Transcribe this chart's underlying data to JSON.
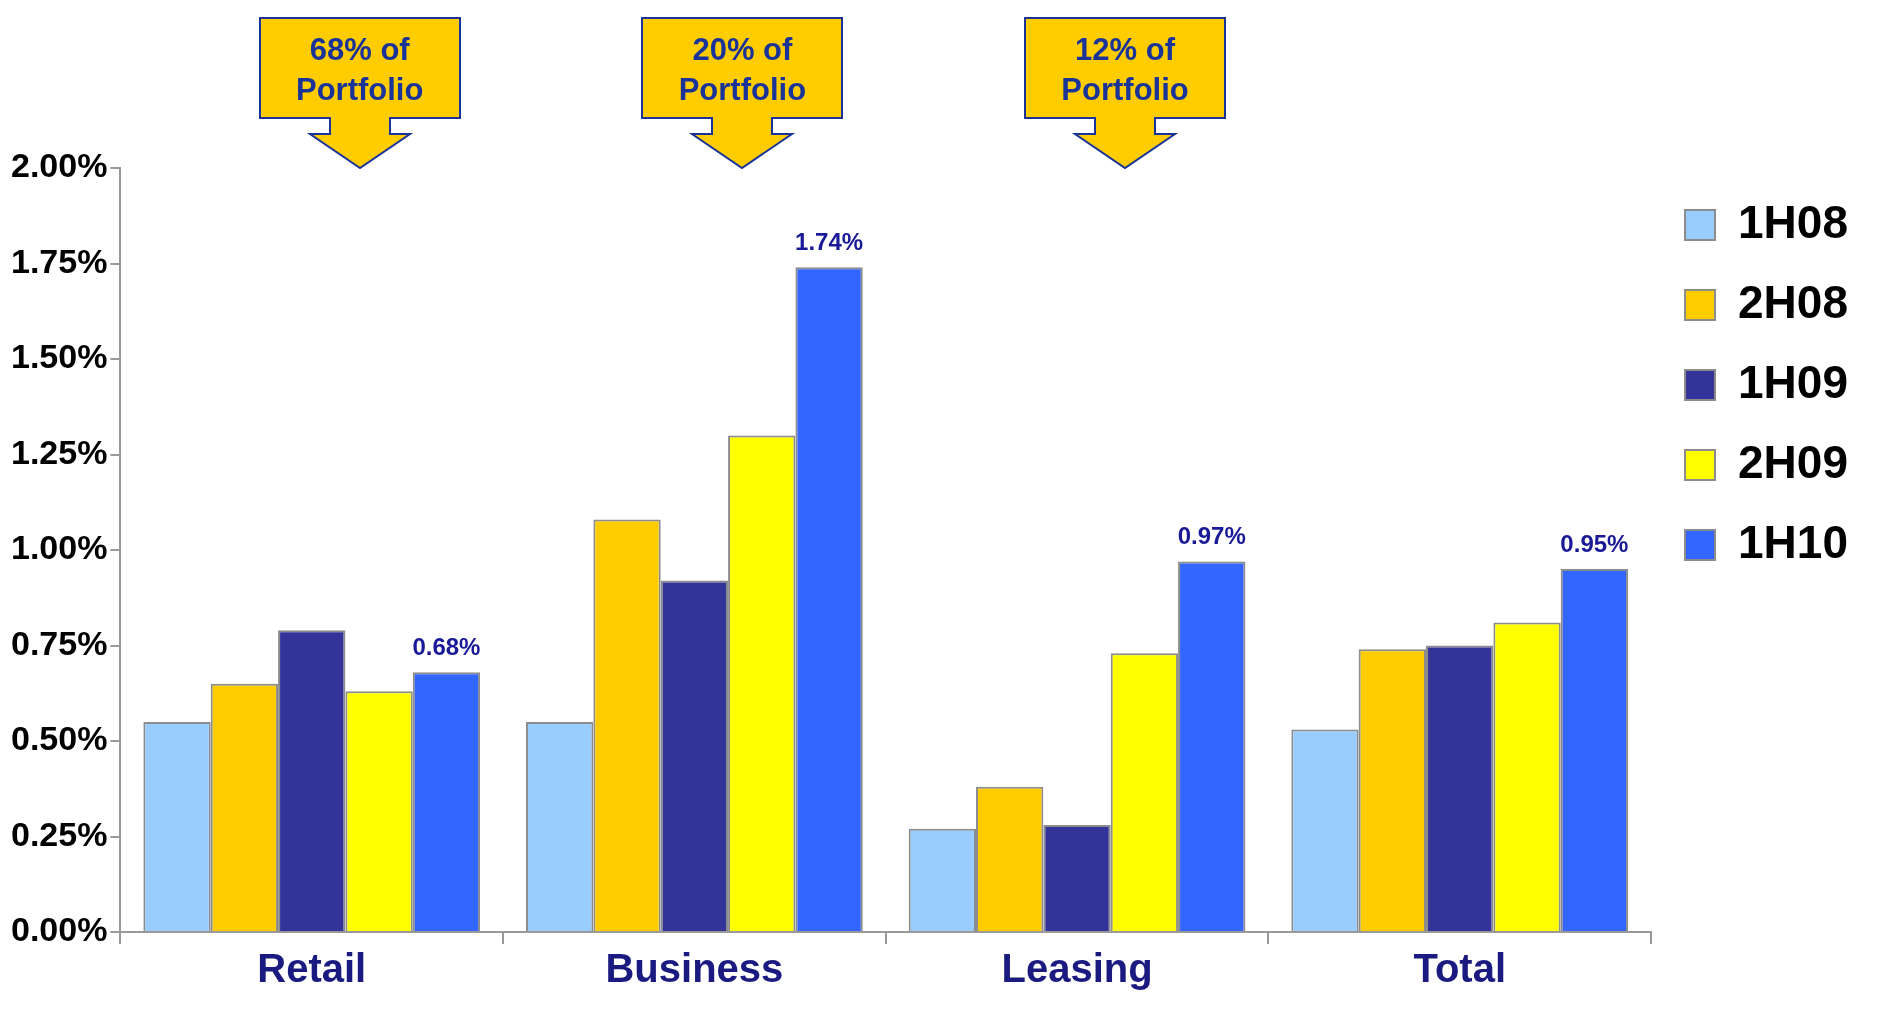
{
  "chart_data": {
    "type": "bar",
    "categories": [
      "Retail",
      "Business",
      "Leasing",
      "Total"
    ],
    "series": [
      {
        "name": "1H08",
        "color": "#99ccff",
        "values": [
          0.55,
          0.55,
          0.27,
          0.53
        ]
      },
      {
        "name": "2H08",
        "color": "#ffcc00",
        "values": [
          0.65,
          1.08,
          0.38,
          0.74
        ]
      },
      {
        "name": "1H09",
        "color": "#333399",
        "values": [
          0.79,
          0.92,
          0.28,
          0.75
        ]
      },
      {
        "name": "2H09",
        "color": "#ffff00",
        "values": [
          0.63,
          1.3,
          0.73,
          0.81
        ]
      },
      {
        "name": "1H10",
        "color": "#3366ff",
        "values": [
          0.68,
          1.74,
          0.97,
          0.95
        ],
        "value_labels": [
          "0.68%",
          "1.74%",
          "0.97%",
          "0.95%"
        ]
      }
    ],
    "ylim": [
      0,
      2
    ],
    "yticks": [
      {
        "value": 0,
        "label": "0.00%"
      },
      {
        "value": 0.25,
        "label": "0.25%"
      },
      {
        "value": 0.5,
        "label": "0.50%"
      },
      {
        "value": 0.75,
        "label": "0.75%"
      },
      {
        "value": 1,
        "label": "1.00%"
      },
      {
        "value": 1.25,
        "label": "1.25%"
      },
      {
        "value": 1.5,
        "label": "1.50%"
      },
      {
        "value": 1.75,
        "label": "1.75%"
      },
      {
        "value": 2,
        "label": "2.00%"
      }
    ],
    "grid": false,
    "legend": "right",
    "annotations": [
      "68% of Portfolio",
      "20% of Portfolio",
      "12% of Portfolio"
    ]
  }
}
